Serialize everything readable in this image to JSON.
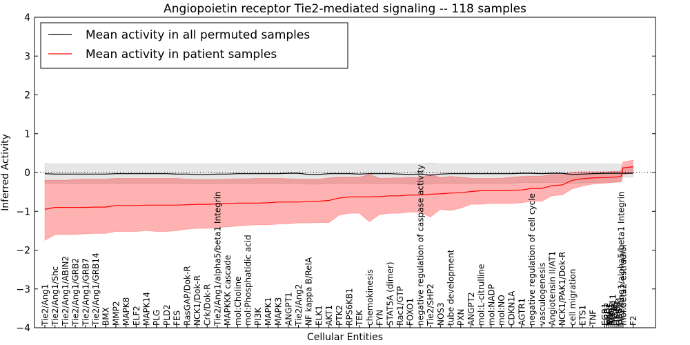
{
  "chart_data": {
    "type": "line",
    "title": "Angiopoietin receptor Tie2-mediated signaling -- 118 samples",
    "xlabel": "Cellular Entities",
    "ylabel": "Inferred Activity",
    "ylim": [
      -4,
      4
    ],
    "yticks": [
      4,
      3,
      2,
      1,
      0,
      -1,
      -2,
      -3,
      -4
    ],
    "yticks_labels": [
      "4",
      "3",
      "2",
      "1",
      "0",
      "−1",
      "−2",
      "−3",
      "−4"
    ],
    "zero_line": "dotted",
    "legend": {
      "position": "top-left",
      "entries": [
        {
          "label": "Mean activity in all permuted samples",
          "color": "#000000"
        },
        {
          "label": "Mean activity in patient samples",
          "color": "#ff0000"
        }
      ]
    },
    "categories": [
      "Tie2/Ang1",
      "Tie2/Ang1/Shc",
      "Tie2/Ang1/ABIN2",
      "Tie2/Ang1/GRB2",
      "Tie2/Ang1/GRB7",
      "Tie2/Ang1/GRB14",
      "BMX",
      "MMP2",
      "MAPK8",
      "ELF2",
      "MAPK14",
      "PLG",
      "PLD2",
      "FES",
      "RasGAP/Dok-R",
      "NCK1/Dok-R",
      "Crk/Dok-R",
      "Tie2/Ang1/alpha5/beta1 Integrin",
      "MAPKKK cascade",
      "mol:Choline",
      "mol:Phosphatidic acid",
      "PI3K",
      "MAPK1",
      "MAPK3",
      "ANGPT1",
      "Tie2/Ang2",
      "NF kappa B/RelA",
      "ELK1",
      "AKT1",
      "PTK2",
      "RPS6KB1",
      "TEK",
      "chemokinesis",
      "FYN",
      "STAT5A (dimer)",
      "Rac1/GTP",
      "FOXO1",
      "negative regulation of caspase activity",
      "Tie2/SHP2",
      "NOS3",
      "tube development",
      "PXN",
      "ANGPT2",
      "mol:L-citrulline",
      "mol:NADP",
      "mol:NO",
      "CDKN1A",
      "AGTR1",
      "negative regulation of cell cycle",
      "vasculogenesis",
      "Angiotensin II/AT1",
      "NCK1/PAK1/Dok-R",
      "cell migration",
      "ETS1",
      "TNF",
      "EGR1",
      "GRB2",
      "SHC1",
      "RAC1",
      "PTPN11",
      "ITGA5",
      "ITGB1",
      "GRB14",
      "Tie2/Ang1/alpha5/beta1 Integrin",
      "mol:beta2-estradiol",
      "F2"
    ],
    "x_index": [
      0,
      1,
      2,
      3,
      4,
      5,
      6,
      7,
      8,
      9,
      10,
      11,
      12,
      13,
      14,
      15,
      16,
      17,
      18,
      19,
      20,
      21,
      22,
      23,
      24,
      25,
      26,
      27,
      28,
      29,
      30,
      31,
      32,
      33,
      34,
      35,
      36,
      37,
      38,
      39,
      40,
      41,
      42,
      43,
      44,
      45,
      46,
      47,
      48,
      49,
      50,
      51,
      52,
      53,
      54,
      55.2,
      55.4,
      55.6,
      55.8,
      56.0,
      56.2,
      56.4,
      56.6,
      56.8,
      57,
      58
    ],
    "series": [
      {
        "name": "Mean activity in patient samples",
        "color": "#ff0000",
        "values": [
          -0.95,
          -0.9,
          -0.9,
          -0.9,
          -0.9,
          -0.89,
          -0.89,
          -0.85,
          -0.85,
          -0.85,
          -0.84,
          -0.84,
          -0.84,
          -0.84,
          -0.83,
          -0.82,
          -0.82,
          -0.81,
          -0.8,
          -0.79,
          -0.79,
          -0.79,
          -0.78,
          -0.76,
          -0.76,
          -0.76,
          -0.75,
          -0.74,
          -0.72,
          -0.66,
          -0.63,
          -0.63,
          -0.63,
          -0.62,
          -0.6,
          -0.6,
          -0.58,
          -0.58,
          -0.56,
          -0.55,
          -0.53,
          -0.52,
          -0.49,
          -0.47,
          -0.47,
          -0.47,
          -0.46,
          -0.45,
          -0.41,
          -0.41,
          -0.34,
          -0.32,
          -0.2,
          -0.16,
          -0.14,
          -0.13,
          -0.13,
          -0.13,
          -0.12,
          -0.12,
          -0.12,
          -0.11,
          -0.11,
          -0.1,
          0.12,
          0.15
        ],
        "lower": [
          -1.75,
          -1.6,
          -1.6,
          -1.6,
          -1.58,
          -1.57,
          -1.57,
          -1.52,
          -1.52,
          -1.52,
          -1.5,
          -1.52,
          -1.52,
          -1.5,
          -1.46,
          -1.44,
          -1.44,
          -1.42,
          -1.4,
          -1.38,
          -1.36,
          -1.35,
          -1.35,
          -1.33,
          -1.32,
          -1.3,
          -1.3,
          -1.29,
          -1.29,
          -1.1,
          -1.05,
          -1.05,
          -1.27,
          -1.08,
          -1.05,
          -1.05,
          -1.02,
          -1.02,
          -1.15,
          -0.95,
          -0.98,
          -0.92,
          -0.82,
          -0.82,
          -0.8,
          -0.8,
          -0.8,
          -0.78,
          -0.74,
          -0.74,
          -0.6,
          -0.58,
          -0.42,
          -0.35,
          -0.3,
          -0.28,
          -0.27,
          -0.27,
          -0.26,
          -0.26,
          -0.25,
          -0.25,
          -0.24,
          -0.24,
          -0.05,
          -0.02
        ],
        "upper": [
          -0.2,
          -0.2,
          -0.2,
          -0.18,
          -0.17,
          -0.17,
          -0.17,
          -0.15,
          -0.15,
          -0.15,
          -0.15,
          -0.15,
          -0.15,
          -0.15,
          -0.17,
          -0.18,
          -0.18,
          -0.18,
          -0.17,
          -0.16,
          -0.16,
          -0.15,
          -0.15,
          -0.15,
          -0.16,
          -0.17,
          -0.17,
          -0.17,
          -0.14,
          -0.12,
          -0.12,
          -0.12,
          -0.05,
          -0.15,
          -0.14,
          -0.14,
          -0.13,
          -0.13,
          -0.05,
          -0.13,
          -0.1,
          -0.12,
          -0.15,
          -0.15,
          -0.15,
          -0.15,
          -0.12,
          -0.1,
          -0.09,
          -0.09,
          -0.05,
          -0.05,
          0.01,
          0.02,
          0.02,
          0.02,
          0.02,
          0.02,
          0.03,
          0.03,
          0.03,
          0.03,
          0.03,
          0.04,
          0.27,
          0.32
        ]
      },
      {
        "name": "Mean activity in all permuted samples",
        "color": "#000000",
        "values": [
          -0.03,
          -0.04,
          -0.04,
          -0.04,
          -0.04,
          -0.04,
          -0.04,
          -0.03,
          -0.03,
          -0.03,
          -0.03,
          -0.03,
          -0.03,
          -0.04,
          -0.04,
          -0.05,
          -0.05,
          -0.04,
          -0.04,
          -0.03,
          -0.03,
          -0.03,
          -0.03,
          -0.03,
          -0.02,
          -0.02,
          -0.05,
          -0.05,
          -0.03,
          -0.03,
          -0.03,
          -0.04,
          -0.03,
          -0.03,
          -0.03,
          -0.04,
          -0.05,
          -0.04,
          -0.07,
          -0.04,
          -0.03,
          -0.03,
          -0.03,
          -0.03,
          -0.03,
          -0.03,
          -0.03,
          -0.02,
          -0.02,
          -0.03,
          -0.02,
          -0.02,
          -0.05,
          -0.04,
          -0.03,
          -0.02,
          -0.02,
          -0.02,
          -0.02,
          -0.02,
          -0.02,
          -0.02,
          -0.02,
          -0.02,
          -0.02,
          -0.02
        ],
        "lower": [
          -0.27,
          -0.28,
          -0.28,
          -0.28,
          -0.28,
          -0.28,
          -0.28,
          -0.28,
          -0.28,
          -0.28,
          -0.28,
          -0.28,
          -0.28,
          -0.28,
          -0.29,
          -0.29,
          -0.29,
          -0.28,
          -0.28,
          -0.28,
          -0.28,
          -0.28,
          -0.28,
          -0.28,
          -0.28,
          -0.28,
          -0.3,
          -0.3,
          -0.28,
          -0.28,
          -0.28,
          -0.28,
          -0.28,
          -0.28,
          -0.28,
          -0.28,
          -0.3,
          -0.3,
          -0.3,
          -0.28,
          -0.28,
          -0.28,
          -0.28,
          -0.28,
          -0.28,
          -0.28,
          -0.28,
          -0.26,
          -0.26,
          -0.26,
          -0.26,
          -0.26,
          -0.28,
          -0.27,
          -0.26,
          -0.25,
          -0.25,
          -0.25,
          -0.25,
          -0.25,
          -0.25,
          -0.25,
          -0.25,
          -0.25,
          -0.12,
          -0.12
        ],
        "upper": [
          0.24,
          0.22,
          0.22,
          0.22,
          0.22,
          0.22,
          0.22,
          0.22,
          0.22,
          0.22,
          0.22,
          0.22,
          0.22,
          0.22,
          0.22,
          0.22,
          0.22,
          0.22,
          0.22,
          0.22,
          0.22,
          0.22,
          0.22,
          0.22,
          0.22,
          0.22,
          0.23,
          0.23,
          0.22,
          0.22,
          0.22,
          0.22,
          0.22,
          0.22,
          0.22,
          0.22,
          0.22,
          0.22,
          0.25,
          0.22,
          0.22,
          0.22,
          0.22,
          0.22,
          0.22,
          0.22,
          0.22,
          0.22,
          0.22,
          0.22,
          0.22,
          0.22,
          0.22,
          0.22,
          0.22,
          0.22,
          0.22,
          0.22,
          0.22,
          0.22,
          0.22,
          0.22,
          0.22,
          0.22,
          0.13,
          0.13
        ]
      }
    ]
  }
}
